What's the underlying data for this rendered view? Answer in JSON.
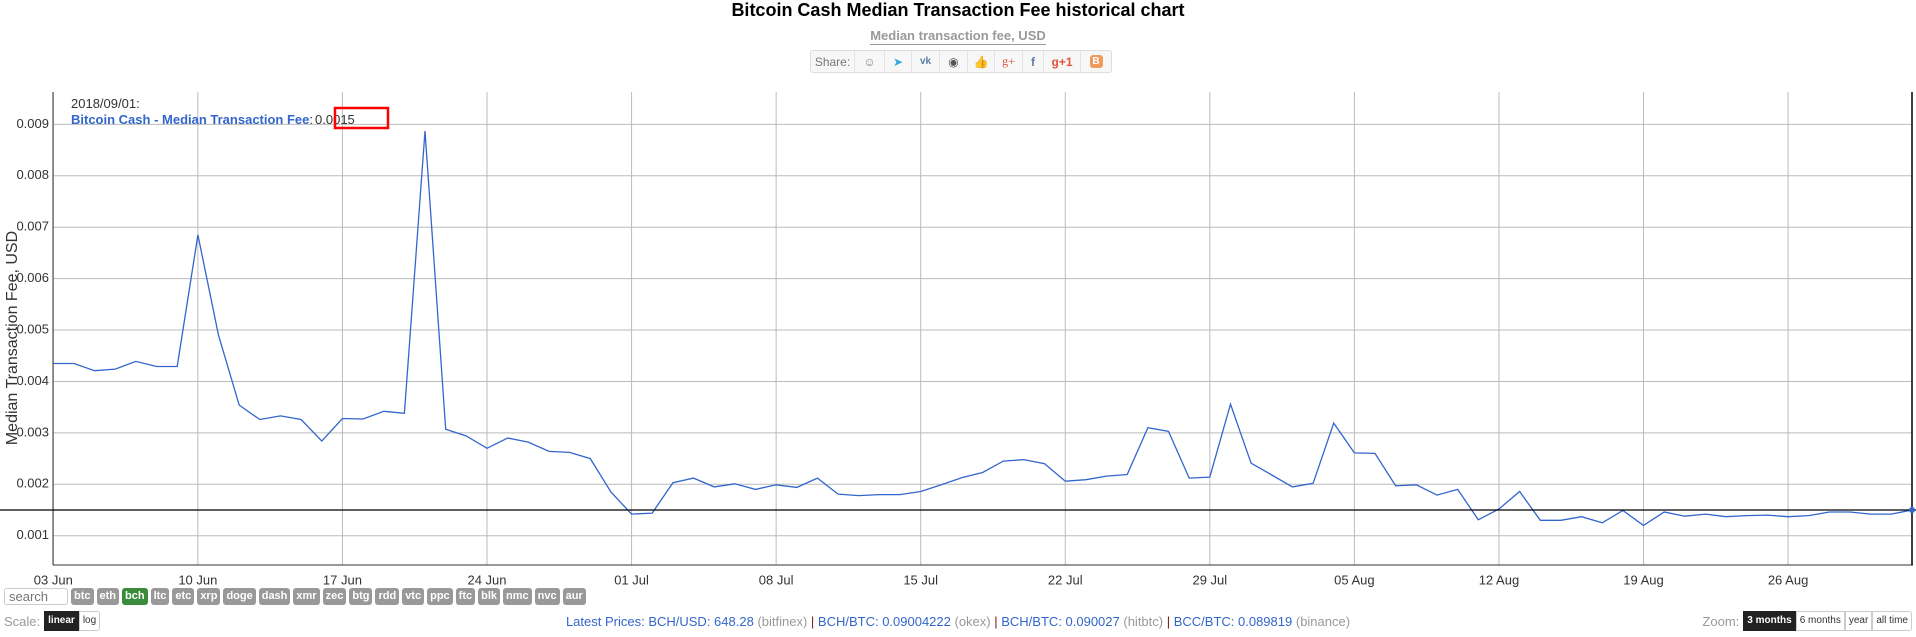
{
  "header": {
    "title": "Bitcoin Cash Median Transaction Fee historical chart",
    "subtitle": "Median transaction fee, USD",
    "share_label": "Share:",
    "share_icons": [
      "reddit-icon",
      "twitter-icon",
      "vk-icon",
      "weibo-icon",
      "like-icon",
      "google-plus-icon",
      "facebook-icon",
      "google-plus-one-icon",
      "blogger-icon"
    ]
  },
  "tooltip": {
    "date": "2018/09/01:",
    "series": "Bitcoin Cash - Median Transaction Fee",
    "colon": ":",
    "value": "0.0015"
  },
  "chart_data": {
    "type": "line",
    "title": "Bitcoin Cash Median Transaction Fee historical chart",
    "subtitle": "Median transaction fee, USD",
    "ylabel": "Median Transaction Fee, USD",
    "xlabel": "",
    "x_start": "2018-06-03",
    "x_end": "2018-09-01",
    "x_step": "1 day",
    "x_tick_labels": [
      "03 Jun",
      "10 Jun",
      "17 Jun",
      "24 Jun",
      "01 Jul",
      "08 Jul",
      "15 Jul",
      "22 Jul",
      "29 Jul",
      "05 Aug",
      "12 Aug",
      "19 Aug",
      "26 Aug"
    ],
    "y_ticks": [
      0.001,
      0.002,
      0.003,
      0.004,
      0.005,
      0.006,
      0.007,
      0.008,
      0.009
    ],
    "y_tick_labels": [
      "0.001",
      "0.002",
      "0.003",
      "0.004",
      "0.005",
      "0.006",
      "0.007",
      "0.008",
      "0.009"
    ],
    "ylim": [
      0.00043,
      0.00963
    ],
    "grid": true,
    "series": [
      {
        "name": "Bitcoin Cash - Median Transaction Fee",
        "color": "#3366cc",
        "values": [
          0.00435,
          0.00435,
          0.00421,
          0.00424,
          0.00439,
          0.00429,
          0.00429,
          0.00685,
          0.0049,
          0.00354,
          0.00326,
          0.00333,
          0.00326,
          0.00284,
          0.00328,
          0.00327,
          0.00342,
          0.00338,
          0.00887,
          0.00307,
          0.00294,
          0.0027,
          0.0029,
          0.00282,
          0.00264,
          0.00262,
          0.0025,
          0.00185,
          0.00142,
          0.00144,
          0.00203,
          0.00212,
          0.00195,
          0.00201,
          0.0019,
          0.00199,
          0.00194,
          0.00212,
          0.00181,
          0.00178,
          0.0018,
          0.0018,
          0.00186,
          0.00199,
          0.00213,
          0.00223,
          0.00245,
          0.00248,
          0.0024,
          0.00206,
          0.00209,
          0.00216,
          0.00219,
          0.0031,
          0.00303,
          0.00212,
          0.00214,
          0.00356,
          0.00241,
          0.00218,
          0.00195,
          0.00202,
          0.00319,
          0.00261,
          0.0026,
          0.00197,
          0.00199,
          0.00179,
          0.0019,
          0.00131,
          0.00152,
          0.00186,
          0.0013,
          0.0013,
          0.00137,
          0.00125,
          0.00149,
          0.0012,
          0.00146,
          0.00138,
          0.00142,
          0.00137,
          0.00139,
          0.0014,
          0.00137,
          0.00139,
          0.00146,
          0.00146,
          0.00142,
          0.00142,
          0.0015
        ]
      }
    ],
    "crosshair": {
      "x_index": 90,
      "y_value": 0.0015
    },
    "highlight_color": "#ff0000"
  },
  "controls": {
    "search_placeholder": "search",
    "currencies": [
      "btc",
      "eth",
      "bch",
      "ltc",
      "etc",
      "xrp",
      "doge",
      "dash",
      "xmr",
      "zec",
      "btg",
      "rdd",
      "vtc",
      "ppc",
      "ftc",
      "blk",
      "nmc",
      "nvc",
      "aur"
    ],
    "active_currency": "bch",
    "scale_label": "Scale:",
    "scale_options": [
      "linear",
      "log"
    ],
    "zoom_label": "Zoom:",
    "zoom_options": [
      "3 months",
      "6 months",
      "year",
      "all time"
    ]
  },
  "prices": {
    "label": "Latest Prices: ",
    "items": [
      {
        "pair": "BCH/USD: 648.28",
        "exchange": "(bitfinex)"
      },
      {
        "pair": "BCH/BTC: 0.09004222",
        "exchange": "(okex)"
      },
      {
        "pair": "BCH/BTC: 0.090027",
        "exchange": "(hitbtc)"
      },
      {
        "pair": "BCC/BTC: 0.089819",
        "exchange": "(binance)"
      }
    ],
    "separator": " | "
  }
}
